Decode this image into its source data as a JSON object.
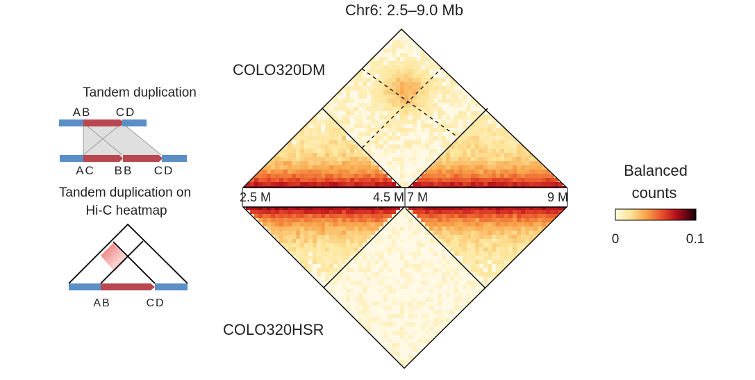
{
  "title": "Chr6: 2.5–9.0 Mb",
  "samples": {
    "top": "COLO320DM",
    "bottom": "COLO320HSR"
  },
  "axis": {
    "left_start": "2.5 M",
    "left_end": "4.5 M",
    "right_start": "7 M",
    "right_end": "9 M"
  },
  "legend": {
    "title_line1": "Balanced",
    "title_line2": "counts",
    "min": "0",
    "max": "0.1",
    "colors": [
      "#fffbe3",
      "#fde59a",
      "#f9a54a",
      "#e8502a",
      "#b8101c",
      "#5a0410",
      "#120006"
    ]
  },
  "schematic": {
    "dup_title": "Tandem duplication",
    "top_labels": {
      "ab": "AB",
      "cd": "CD"
    },
    "bottom_labels": {
      "ac": "AC",
      "bb": "BB",
      "cd": "CD"
    },
    "heatmap_title_line1": "Tandem duplication on",
    "heatmap_title_line2": "Hi-C heatmap",
    "heatmap_labels": {
      "ab": "AB",
      "cd": "CD"
    },
    "colors": {
      "segment_blue": "#5b8ec6",
      "segment_red": "#b84750",
      "shade": "#dcdcdc"
    }
  }
}
